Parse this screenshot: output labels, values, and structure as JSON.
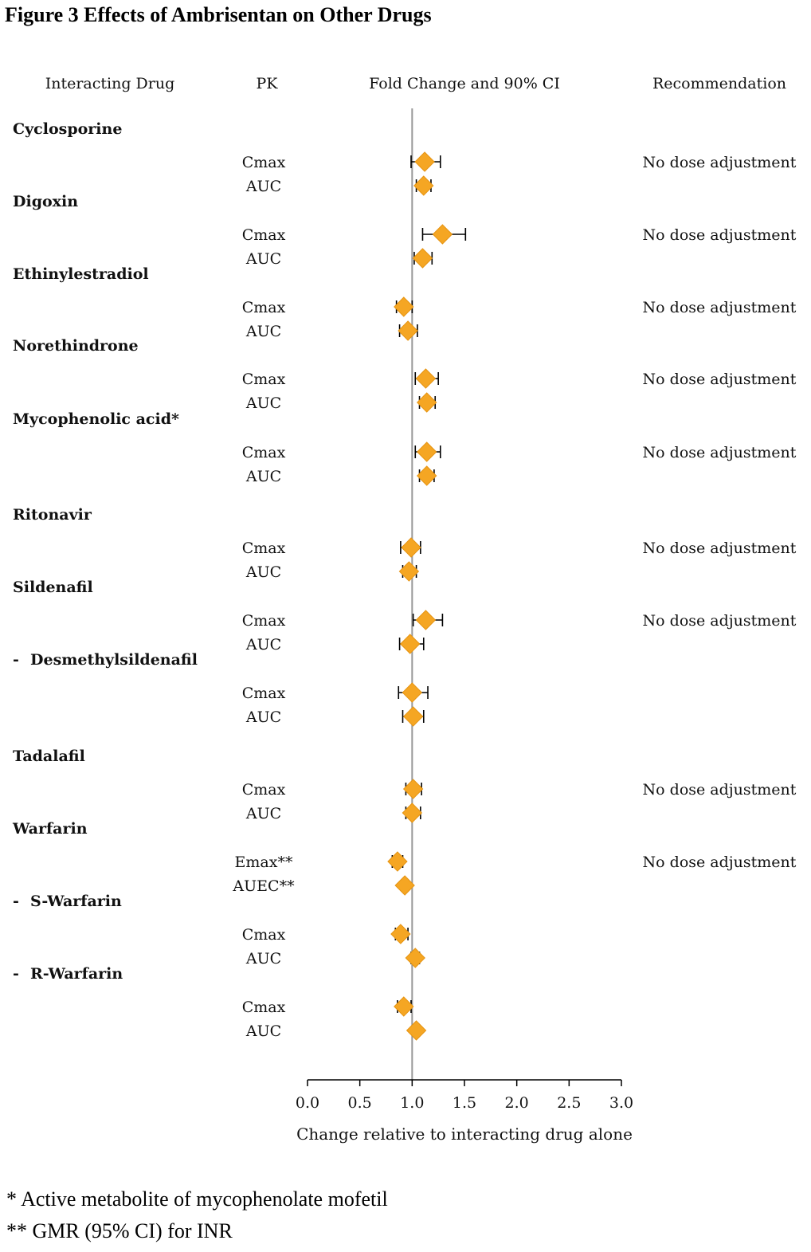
{
  "figure_title": "Figure 3 Effects of Ambrisentan on Other Drugs",
  "footnotes": [
    "* Active metabolite of mycophenolate mofetil",
    "** GMR (95% CI) for INR"
  ],
  "chart_data": {
    "type": "forest",
    "title": "Figure 3 Effects of Ambrisentan on Other Drugs",
    "column_headers": {
      "drug": "Interacting Drug",
      "pk": "PK",
      "plot": "Fold Change and 90% CI",
      "recommendation": "Recommendation"
    },
    "xlabel": "Change relative to interacting drug alone",
    "xlim": [
      0.0,
      3.0
    ],
    "xticks": [
      "0.0",
      "0.5",
      "1.0",
      "1.5",
      "2.0",
      "2.5",
      "3.0"
    ],
    "reference_line": 1.0,
    "marker_color": "#F5A623",
    "groups": [
      {
        "drug": "Cyclosporine",
        "recommendation": "No dose adjustment",
        "rows": [
          {
            "pk": "Cmax",
            "est": 1.12,
            "lo": 0.99,
            "hi": 1.27
          },
          {
            "pk": "AUC",
            "est": 1.11,
            "lo": 1.04,
            "hi": 1.18
          }
        ]
      },
      {
        "drug": "Digoxin",
        "recommendation": "No dose adjustment",
        "rows": [
          {
            "pk": "Cmax",
            "est": 1.29,
            "lo": 1.1,
            "hi": 1.51
          },
          {
            "pk": "AUC",
            "est": 1.1,
            "lo": 1.02,
            "hi": 1.19
          }
        ]
      },
      {
        "drug": "Ethinylestradiol",
        "recommendation": "No dose adjustment",
        "rows": [
          {
            "pk": "Cmax",
            "est": 0.92,
            "lo": 0.85,
            "hi": 1.0
          },
          {
            "pk": "AUC",
            "est": 0.96,
            "lo": 0.88,
            "hi": 1.05
          }
        ]
      },
      {
        "drug": "Norethindrone",
        "recommendation": "No dose adjustment",
        "rows": [
          {
            "pk": "Cmax",
            "est": 1.13,
            "lo": 1.03,
            "hi": 1.25
          },
          {
            "pk": "AUC",
            "est": 1.14,
            "lo": 1.07,
            "hi": 1.22
          }
        ]
      },
      {
        "drug": "Mycophenolic acid*",
        "recommendation": "No dose adjustment",
        "rows": [
          {
            "pk": "Cmax",
            "est": 1.14,
            "lo": 1.03,
            "hi": 1.27
          },
          {
            "pk": "AUC",
            "est": 1.14,
            "lo": 1.07,
            "hi": 1.21
          }
        ]
      },
      {
        "drug": "Ritonavir",
        "recommendation": "No dose adjustment",
        "rows": [
          {
            "pk": "Cmax",
            "est": 0.99,
            "lo": 0.89,
            "hi": 1.08
          },
          {
            "pk": "AUC",
            "est": 0.97,
            "lo": 0.91,
            "hi": 1.04
          }
        ]
      },
      {
        "drug": "Sildenafil",
        "recommendation": "No dose adjustment",
        "rows": [
          {
            "pk": "Cmax",
            "est": 1.13,
            "lo": 1.01,
            "hi": 1.29
          },
          {
            "pk": "AUC",
            "est": 0.98,
            "lo": 0.88,
            "hi": 1.11
          }
        ]
      },
      {
        "drug": "Desmethylsildenafil",
        "sub": true,
        "recommendation": "",
        "rows": [
          {
            "pk": "Cmax",
            "est": 1.0,
            "lo": 0.87,
            "hi": 1.15
          },
          {
            "pk": "AUC",
            "est": 1.01,
            "lo": 0.91,
            "hi": 1.11
          }
        ]
      },
      {
        "drug": "Tadalafil",
        "recommendation": "No dose adjustment",
        "rows": [
          {
            "pk": "Cmax",
            "est": 1.01,
            "lo": 0.94,
            "hi": 1.09
          },
          {
            "pk": "AUC",
            "est": 1.0,
            "lo": 0.94,
            "hi": 1.08
          }
        ]
      },
      {
        "drug": "Warfarin",
        "recommendation": "No dose adjustment",
        "rows": [
          {
            "pk": "Emax**",
            "est": 0.86,
            "lo": 0.81,
            "hi": 0.91
          },
          {
            "pk": "AUEC**",
            "est": 0.93,
            "lo": 0.9,
            "hi": 0.96
          }
        ]
      },
      {
        "drug": "S-Warfarin",
        "sub": true,
        "recommendation": "",
        "rows": [
          {
            "pk": "Cmax",
            "est": 0.89,
            "lo": 0.84,
            "hi": 0.96
          },
          {
            "pk": "AUC",
            "est": 1.03,
            "lo": 0.99,
            "hi": 1.07
          }
        ]
      },
      {
        "drug": "R-Warfarin",
        "sub": true,
        "recommendation": "",
        "rows": [
          {
            "pk": "Cmax",
            "est": 0.92,
            "lo": 0.86,
            "hi": 0.99
          },
          {
            "pk": "AUC",
            "est": 1.04,
            "lo": 1.01,
            "hi": 1.07
          }
        ]
      }
    ]
  }
}
